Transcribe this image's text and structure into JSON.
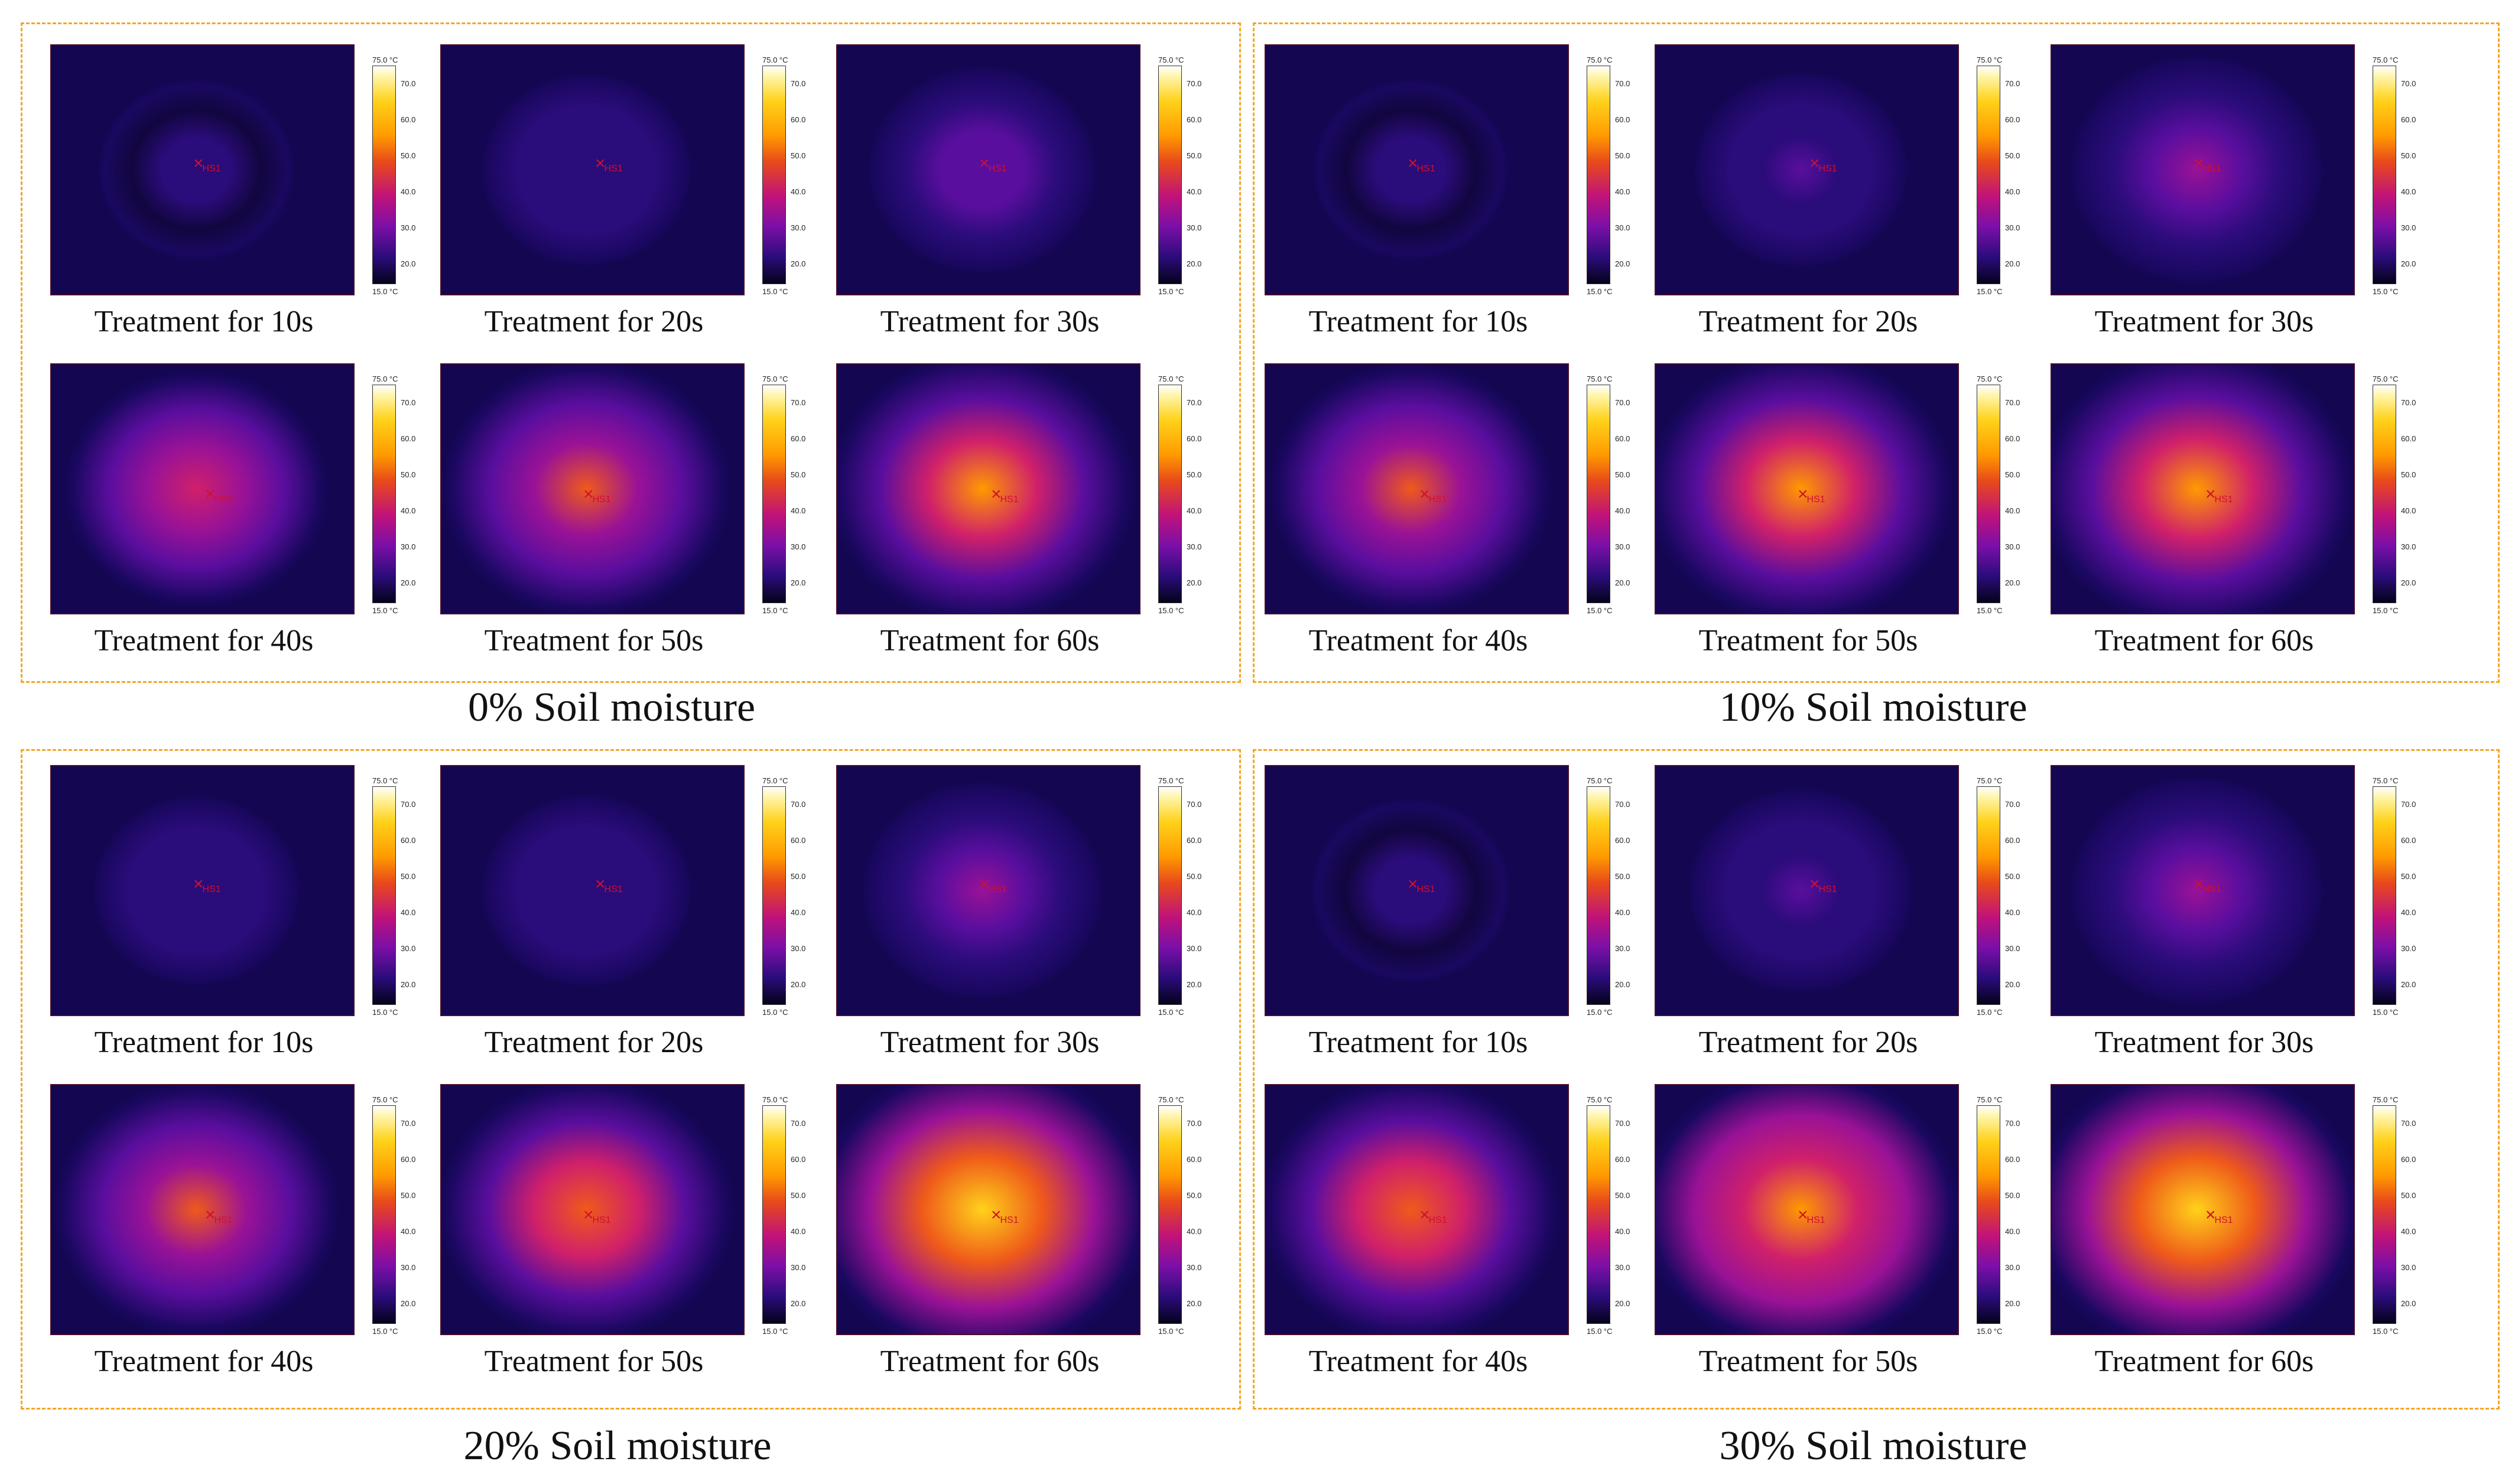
{
  "marker_label": "HS1",
  "colorbar": {
    "max": "75.0 °C",
    "min": "15.0 °C",
    "ticks": [
      "70.0",
      "60.0",
      "50.0",
      "40.0",
      "30.0",
      "20.0"
    ]
  },
  "groups": [
    {
      "title": "0% Soil moisture",
      "panels": [
        {
          "caption": "Treatment for 10s",
          "heat": 0.1
        },
        {
          "caption": "Treatment for 20s",
          "heat": 0.18
        },
        {
          "caption": "Treatment for 30s",
          "heat": 0.28
        },
        {
          "caption": "Treatment for 40s",
          "heat": 0.48
        },
        {
          "caption": "Treatment for 50s",
          "heat": 0.62
        },
        {
          "caption": "Treatment for 60s",
          "heat": 0.72
        }
      ]
    },
    {
      "title": "10% Soil moisture",
      "panels": [
        {
          "caption": "Treatment for 10s",
          "heat": 0.1
        },
        {
          "caption": "Treatment for 20s",
          "heat": 0.2
        },
        {
          "caption": "Treatment for 30s",
          "heat": 0.42
        },
        {
          "caption": "Treatment for 40s",
          "heat": 0.58
        },
        {
          "caption": "Treatment for 50s",
          "heat": 0.72
        },
        {
          "caption": "Treatment for 60s",
          "heat": 0.78
        }
      ]
    },
    {
      "title": "20% Soil moisture",
      "panels": [
        {
          "caption": "Treatment for 10s",
          "heat": 0.16
        },
        {
          "caption": "Treatment for 20s",
          "heat": 0.18
        },
        {
          "caption": "Treatment for 30s",
          "heat": 0.35
        },
        {
          "caption": "Treatment for 40s",
          "heat": 0.6
        },
        {
          "caption": "Treatment for 50s",
          "heat": 0.66
        },
        {
          "caption": "Treatment for 60s",
          "heat": 0.9
        }
      ]
    },
    {
      "title": "30% Soil moisture",
      "panels": [
        {
          "caption": "Treatment for 10s",
          "heat": 0.12
        },
        {
          "caption": "Treatment for 20s",
          "heat": 0.26
        },
        {
          "caption": "Treatment for 30s",
          "heat": 0.42
        },
        {
          "caption": "Treatment for 40s",
          "heat": 0.68
        },
        {
          "caption": "Treatment for 50s",
          "heat": 0.8
        },
        {
          "caption": "Treatment for 60s",
          "heat": 0.86
        }
      ]
    }
  ]
}
